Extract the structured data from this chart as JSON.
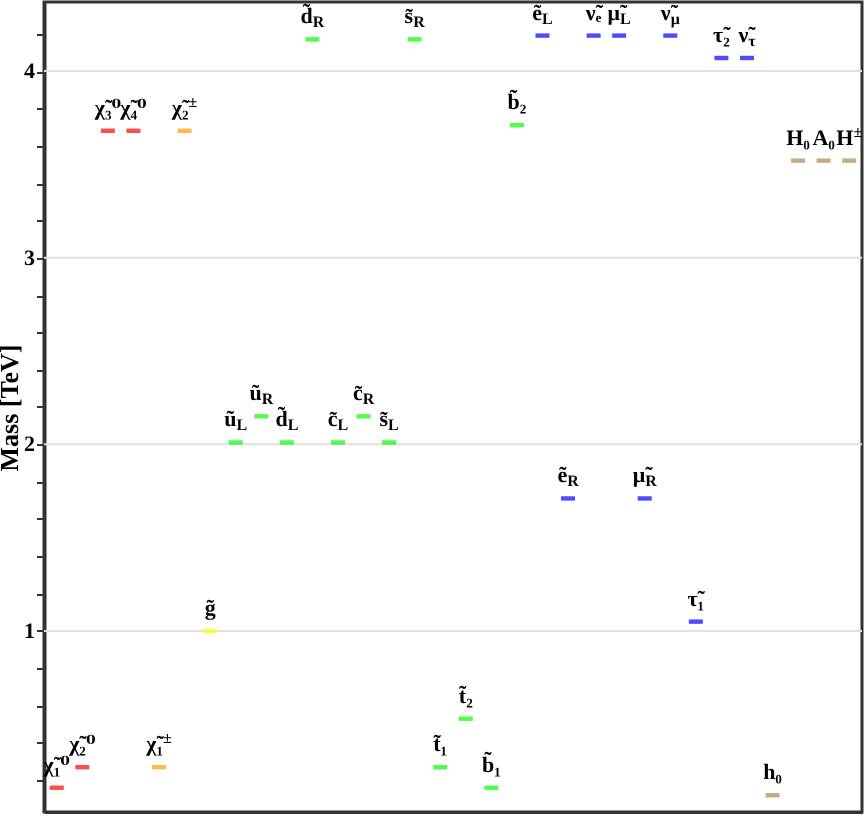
{
  "chart_data": {
    "type": "scatter",
    "ylabel": "Mass [TeV]",
    "ylim": [
      0.03,
      4.37
    ],
    "yticks": [
      {
        "value": 0.2,
        "label": null
      },
      {
        "value": 0.4,
        "label": null
      },
      {
        "value": 0.6,
        "label": null
      },
      {
        "value": 0.8,
        "label": null
      },
      1,
      {
        "value": 1.2,
        "label": null
      },
      {
        "value": 1.4,
        "label": null
      },
      {
        "value": 1.6,
        "label": null
      },
      {
        "value": 1.8,
        "label": null
      },
      2,
      {
        "value": 2.2,
        "label": null
      },
      {
        "value": 2.4,
        "label": null
      },
      {
        "value": 2.6,
        "label": null
      },
      {
        "value": 2.8,
        "label": null
      },
      3,
      {
        "value": 3.2,
        "label": null
      },
      {
        "value": 3.4,
        "label": null
      },
      {
        "value": 3.6,
        "label": null
      },
      {
        "value": 3.8,
        "label": null
      },
      4,
      {
        "value": 4.2,
        "label": null
      }
    ],
    "grid": "y",
    "categories": [
      "χ̃₁⁰",
      "χ̃₂⁰",
      "χ̃₃⁰",
      "χ̃₄⁰",
      "χ̃₁$^{±}$",
      "χ̃₂$^{±}$",
      "g̃",
      "ũ$_{L}$",
      "ũ$_{R}$",
      "d̃$_{L}$",
      "d̃$_{R}$",
      "c̃$_{L}$",
      "c̃$_{R}$",
      "s̃$_{L}$",
      "s̃$_{R}$",
      "t̃₁",
      "t̃₂",
      "b̃₁",
      "b̃₂",
      "ẽ$_{L}$",
      "ẽ$_{R}$",
      "ν̃ₑ",
      "μ̃$_{L}$",
      "μ̃$_{R}$",
      "ν̃$_{μ}$",
      "τ̃₁",
      "τ̃₂",
      "ν̃$_{τ}$",
      "h₀",
      "H₀",
      "A₀",
      "H$^{±}$"
    ],
    "series": [
      {
        "color": "#ff0000",
        "values": [
          0.16,
          0.27,
          3.68,
          3.68,
          null,
          null,
          null,
          null,
          null,
          null,
          null,
          null,
          null,
          null,
          null,
          null,
          null,
          null,
          null,
          null,
          null,
          null,
          null,
          null,
          null,
          null,
          null,
          null,
          null,
          null,
          null,
          null
        ]
      },
      {
        "color": "#ff9900",
        "values": [
          null,
          null,
          null,
          null,
          0.27,
          3.68,
          null,
          null,
          null,
          null,
          null,
          null,
          null,
          null,
          null,
          null,
          null,
          null,
          null,
          null,
          null,
          null,
          null,
          null,
          null,
          null,
          null,
          null,
          null,
          null,
          null,
          null
        ]
      },
      {
        "color": "#ffff00",
        "values": [
          null,
          null,
          null,
          null,
          null,
          null,
          1,
          null,
          null,
          null,
          null,
          null,
          null,
          null,
          null,
          null,
          null,
          null,
          null,
          null,
          null,
          null,
          null,
          null,
          null,
          null,
          null,
          null,
          null,
          null,
          null,
          null
        ]
      },
      {
        "color": "#00ff00",
        "values": [
          null,
          null,
          null,
          null,
          null,
          null,
          null,
          2.01,
          2.15,
          2.01,
          4.17,
          2.01,
          2.15,
          2.01,
          4.17,
          0.27,
          0.53,
          0.16,
          3.71,
          null,
          null,
          null,
          null,
          null,
          null,
          null,
          null,
          null,
          null,
          null,
          null,
          null
        ]
      },
      {
        "color": "#0000ff",
        "values": [
          null,
          null,
          null,
          null,
          null,
          null,
          null,
          null,
          null,
          null,
          null,
          null,
          null,
          null,
          null,
          null,
          null,
          null,
          null,
          4.19,
          1.71,
          4.19,
          4.19,
          1.71,
          4.19,
          1.05,
          4.07,
          4.07,
          null,
          null,
          null,
          null
        ]
      },
      {
        "color": "#b5854b",
        "values": [
          null,
          null,
          null,
          null,
          null,
          null,
          null,
          null,
          null,
          null,
          null,
          null,
          null,
          null,
          null,
          null,
          null,
          null,
          null,
          null,
          null,
          null,
          null,
          null,
          null,
          null,
          null,
          null,
          0.12,
          3.52,
          3.52,
          3.52
        ]
      }
    ]
  }
}
